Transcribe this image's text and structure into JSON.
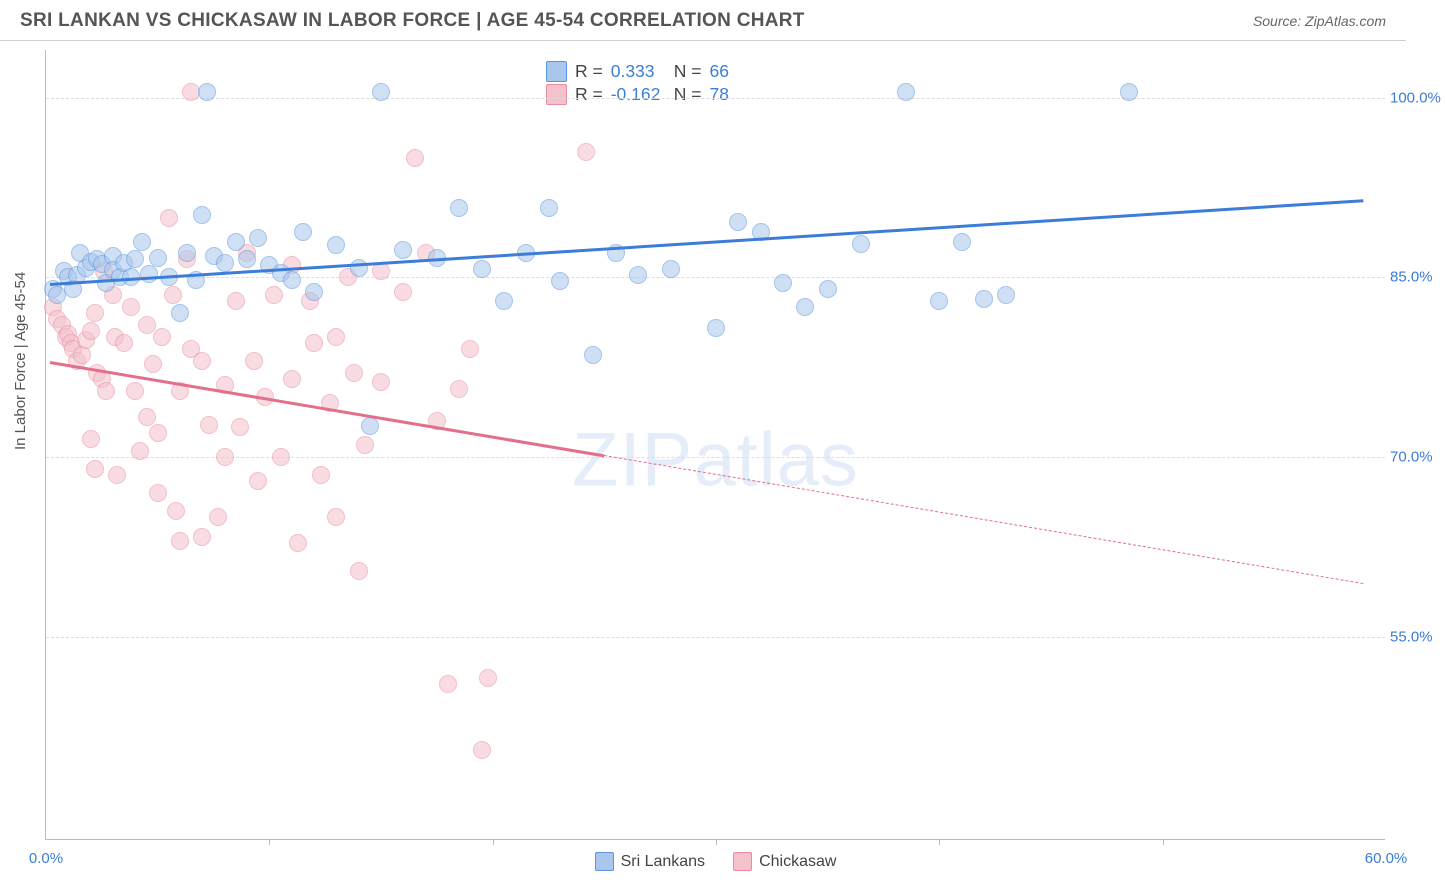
{
  "title": "SRI LANKAN VS CHICKASAW IN LABOR FORCE | AGE 45-54 CORRELATION CHART",
  "source_label": "Source: ZipAtlas.com",
  "ylabel": "In Labor Force | Age 45-54",
  "watermark": "ZIPatlas",
  "chart": {
    "type": "scatter",
    "xlim": [
      0,
      60
    ],
    "ylim": [
      38,
      104
    ],
    "xtick_step": 10,
    "yticks": [
      55.0,
      70.0,
      85.0,
      100.0
    ],
    "ytick_labels": [
      "55.0%",
      "70.0%",
      "85.0%",
      "100.0%"
    ],
    "xtick_labels": [
      "0.0%",
      "60.0%"
    ],
    "background_color": "#ffffff",
    "grid_color": "#dddddd",
    "axis_color": "#bbbbbb",
    "tick_label_color": "#3b7dd8",
    "point_radius": 9,
    "point_opacity": 0.55
  },
  "series": {
    "sri_lankans": {
      "label": "Sri Lankans",
      "fill_color": "#a9c7ec",
      "stroke_color": "#5a94db",
      "trend_color": "#3b7dd8",
      "r": "0.333",
      "n": "66",
      "trend": {
        "x1": 0.2,
        "y1": 84.5,
        "x2": 59,
        "y2": 91.5
      },
      "points": [
        [
          0.3,
          84
        ],
        [
          0.5,
          83.5
        ],
        [
          0.8,
          85.5
        ],
        [
          1.0,
          85
        ],
        [
          1.2,
          84
        ],
        [
          1.4,
          85.2
        ],
        [
          1.5,
          87
        ],
        [
          1.8,
          85.8
        ],
        [
          2.0,
          86.3
        ],
        [
          2.3,
          86.5
        ],
        [
          2.5,
          86.1
        ],
        [
          2.7,
          84.5
        ],
        [
          3.0,
          86.8
        ],
        [
          3.0,
          85.6
        ],
        [
          3.3,
          85.0
        ],
        [
          3.5,
          86.2
        ],
        [
          3.8,
          85.0
        ],
        [
          4.0,
          86.5
        ],
        [
          4.3,
          88
        ],
        [
          4.6,
          85.3
        ],
        [
          5.0,
          86.6
        ],
        [
          5.5,
          85.0
        ],
        [
          6.0,
          82.0
        ],
        [
          6.3,
          87.0
        ],
        [
          6.7,
          84.8
        ],
        [
          7.0,
          90.2
        ],
        [
          7.2,
          100.5
        ],
        [
          7.5,
          86.8
        ],
        [
          8.0,
          86.2
        ],
        [
          8.5,
          88.0
        ],
        [
          9.0,
          86.5
        ],
        [
          9.5,
          88.3
        ],
        [
          10,
          86
        ],
        [
          10.5,
          85.4
        ],
        [
          11,
          84.8
        ],
        [
          11.5,
          88.8
        ],
        [
          12,
          83.8
        ],
        [
          13,
          87.7
        ],
        [
          14,
          85.8
        ],
        [
          14.5,
          72.6
        ],
        [
          15,
          100.5
        ],
        [
          16,
          87.3
        ],
        [
          17.5,
          86.6
        ],
        [
          18.5,
          90.8
        ],
        [
          19.5,
          85.7
        ],
        [
          20.5,
          83.0
        ],
        [
          21.5,
          87.0
        ],
        [
          22.5,
          90.8
        ],
        [
          23,
          84.7
        ],
        [
          24.5,
          78.5
        ],
        [
          25.5,
          87.0
        ],
        [
          26.5,
          85.2
        ],
        [
          28,
          85.7
        ],
        [
          30,
          80.8
        ],
        [
          31,
          89.6
        ],
        [
          32,
          88.8
        ],
        [
          33,
          84.5
        ],
        [
          34,
          82.5
        ],
        [
          35,
          84
        ],
        [
          36.5,
          87.8
        ],
        [
          38.5,
          100.5
        ],
        [
          40,
          83.0
        ],
        [
          41,
          88.0
        ],
        [
          42,
          83.2
        ],
        [
          43,
          83.5
        ],
        [
          48.5,
          100.5
        ]
      ]
    },
    "chickasaw": {
      "label": "Chickasaw",
      "fill_color": "#f4c1cc",
      "stroke_color": "#e88ba0",
      "trend_color": "#e36f8a",
      "r": "-0.162",
      "n": "78",
      "trend_solid": {
        "x1": 0.2,
        "y1": 78.0,
        "x2": 25,
        "y2": 70.2
      },
      "trend_dash": {
        "x1": 25,
        "y1": 70.2,
        "x2": 59,
        "y2": 59.5
      },
      "points": [
        [
          0.3,
          82.5
        ],
        [
          0.5,
          81.5
        ],
        [
          0.7,
          81.0
        ],
        [
          0.9,
          80.0
        ],
        [
          1.0,
          80.3
        ],
        [
          1.1,
          79.5
        ],
        [
          1.2,
          79.0
        ],
        [
          1.4,
          78
        ],
        [
          1.6,
          78.5
        ],
        [
          1.8,
          79.8
        ],
        [
          2.0,
          80.5
        ],
        [
          2.2,
          82
        ],
        [
          2.3,
          77
        ],
        [
          2.5,
          76.5
        ],
        [
          2.7,
          75.5
        ],
        [
          2.0,
          71.5
        ],
        [
          2.2,
          69.0
        ],
        [
          2.6,
          85.5
        ],
        [
          3.0,
          83.5
        ],
        [
          3.1,
          80
        ],
        [
          3.2,
          68.5
        ],
        [
          3.5,
          79.5
        ],
        [
          3.8,
          82.5
        ],
        [
          4.0,
          75.5
        ],
        [
          4.2,
          70.5
        ],
        [
          4.5,
          81.0
        ],
        [
          4.5,
          73.3
        ],
        [
          4.8,
          77.8
        ],
        [
          5.0,
          72.0
        ],
        [
          5.0,
          67.0
        ],
        [
          5.2,
          80.0
        ],
        [
          5.5,
          90.0
        ],
        [
          5.7,
          83.5
        ],
        [
          5.8,
          65.5
        ],
        [
          6.0,
          75.5
        ],
        [
          6.0,
          63.0
        ],
        [
          6.3,
          86.5
        ],
        [
          6.5,
          79.0
        ],
        [
          6.5,
          100.5
        ],
        [
          7.0,
          78.0
        ],
        [
          7.0,
          63.3
        ],
        [
          7.3,
          72.7
        ],
        [
          7.7,
          65.0
        ],
        [
          8.0,
          76.0
        ],
        [
          8.0,
          70.0
        ],
        [
          8.5,
          83.0
        ],
        [
          8.7,
          72.5
        ],
        [
          9.0,
          87.0
        ],
        [
          9.3,
          78.0
        ],
        [
          9.5,
          68.0
        ],
        [
          9.8,
          75.0
        ],
        [
          10.2,
          83.5
        ],
        [
          10.5,
          70.0
        ],
        [
          11,
          76.5
        ],
        [
          11,
          86
        ],
        [
          11.3,
          62.8
        ],
        [
          11.8,
          83.0
        ],
        [
          12,
          79.5
        ],
        [
          12.3,
          68.5
        ],
        [
          12.7,
          74.5
        ],
        [
          13,
          80.0
        ],
        [
          13,
          65.0
        ],
        [
          13.5,
          85.0
        ],
        [
          13.8,
          77.0
        ],
        [
          14,
          60.5
        ],
        [
          14.3,
          71.0
        ],
        [
          15,
          85.5
        ],
        [
          15,
          76.3
        ],
        [
          16,
          83.8
        ],
        [
          16.5,
          95.0
        ],
        [
          17,
          87.0
        ],
        [
          17.5,
          73.0
        ],
        [
          18,
          51.0
        ],
        [
          18.5,
          75.7
        ],
        [
          19,
          79
        ],
        [
          19.5,
          45.5
        ],
        [
          19.8,
          51.5
        ],
        [
          24.2,
          95.5
        ]
      ]
    }
  }
}
